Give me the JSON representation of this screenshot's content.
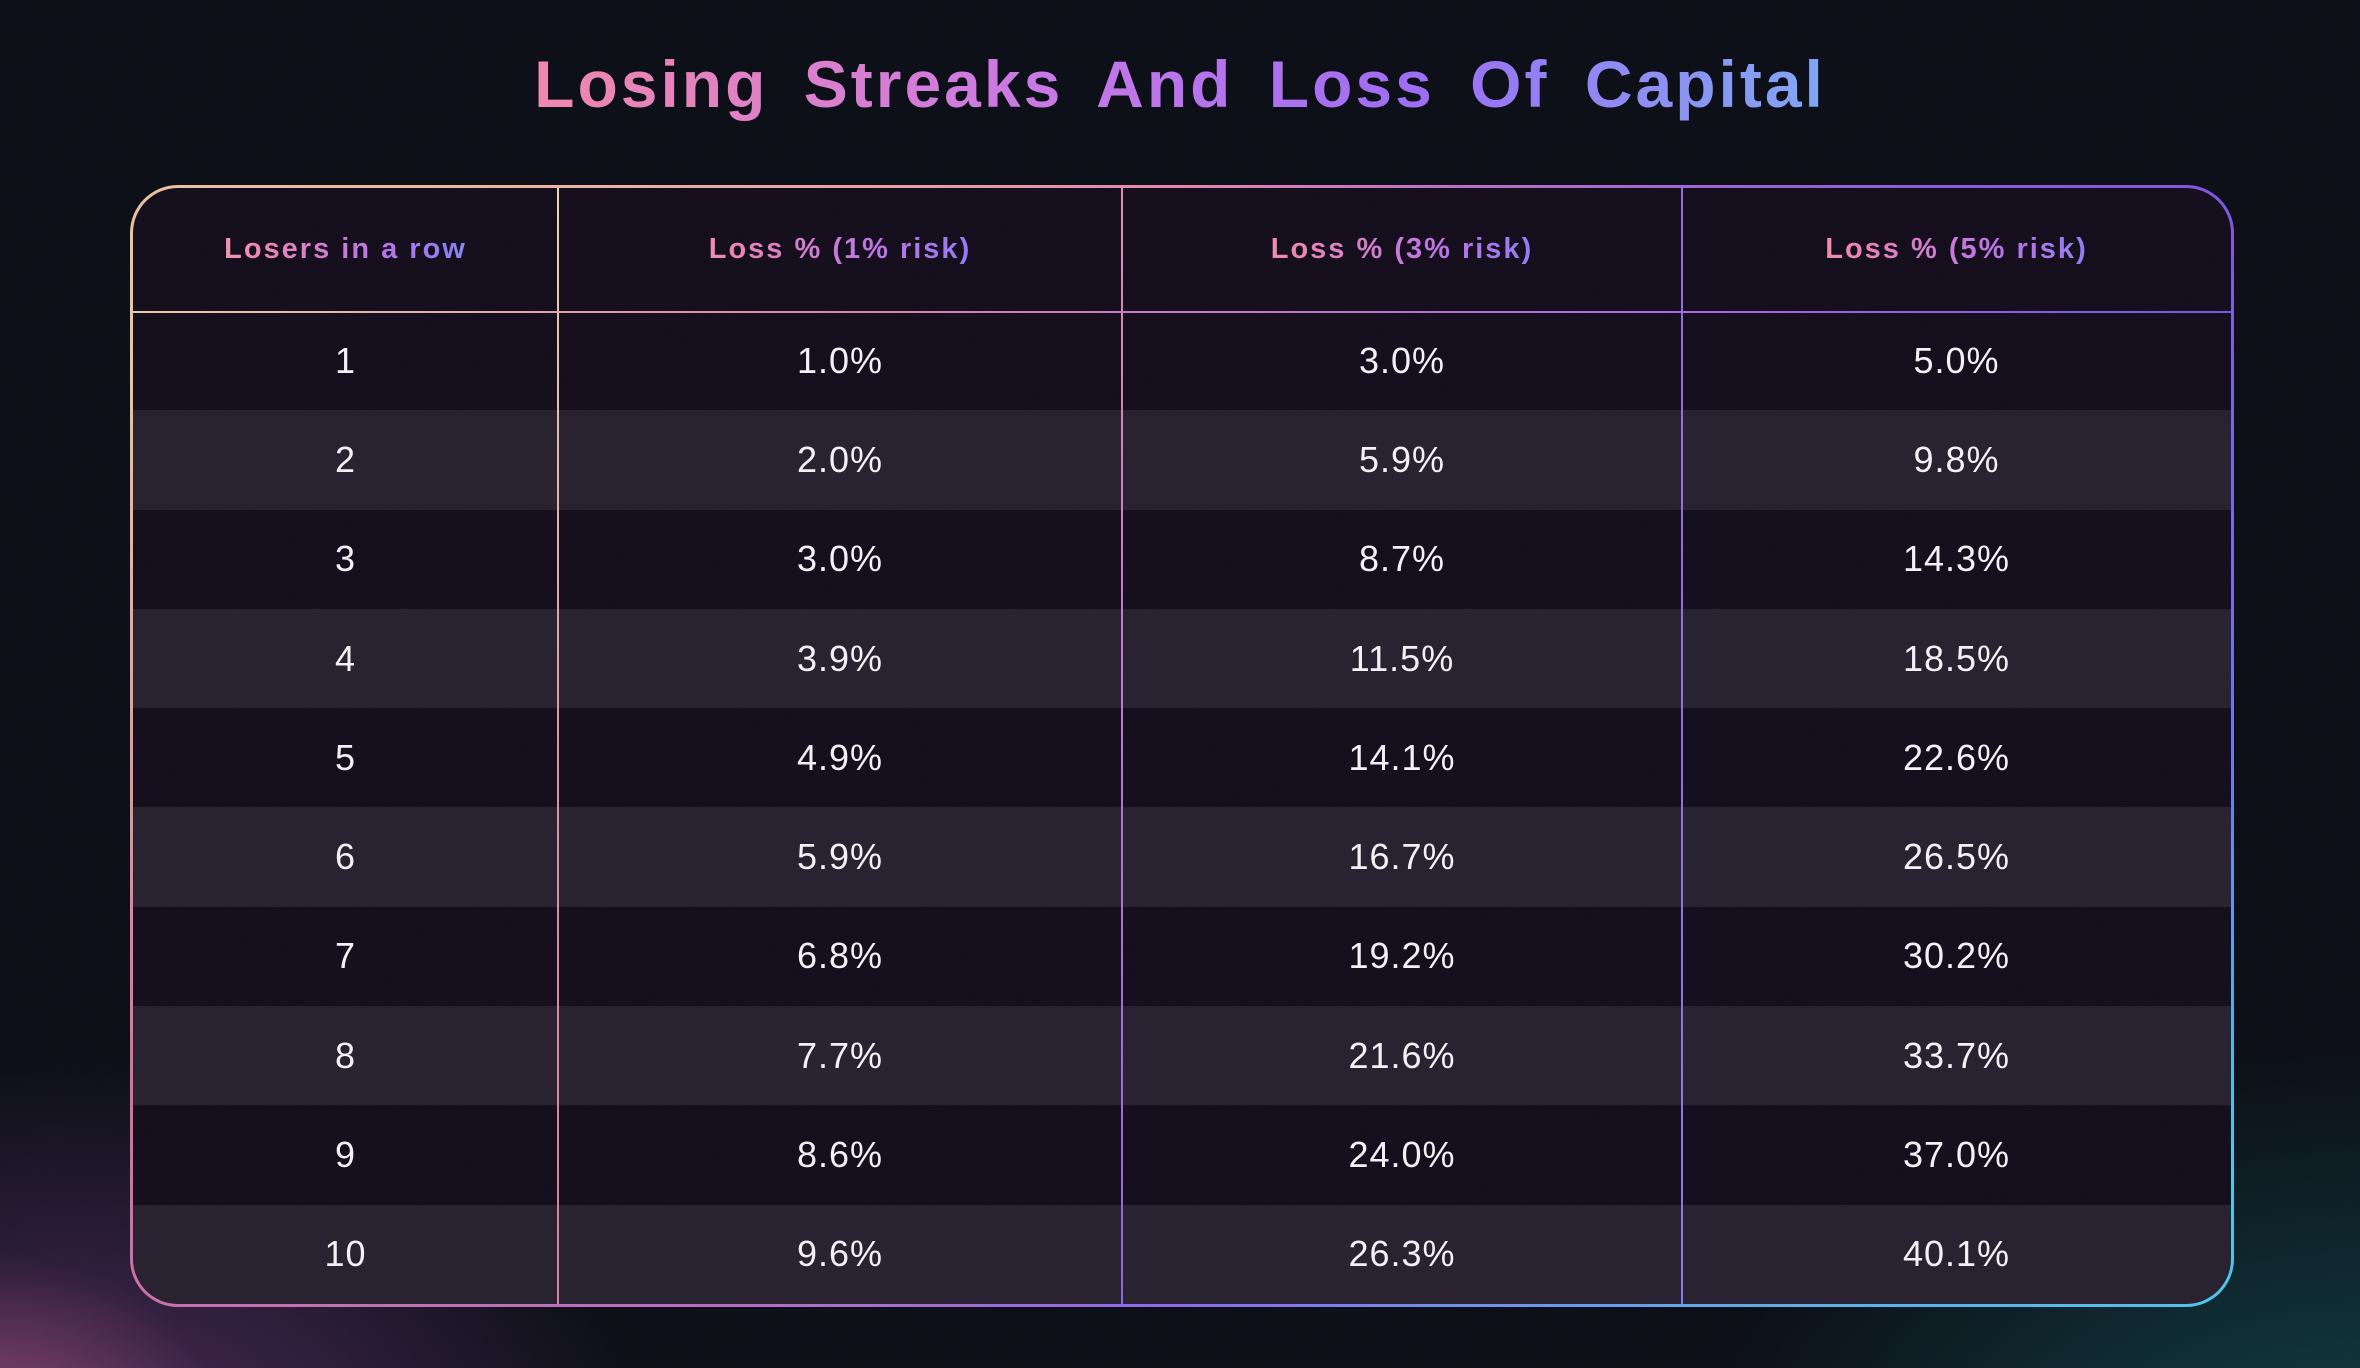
{
  "title": "Losing Streaks And Loss Of Capital",
  "table": {
    "columns": [
      "Losers in a row",
      "Loss % (1% risk)",
      "Loss % (3% risk)",
      "Loss % (5% risk)"
    ],
    "rows": [
      [
        "1",
        "1.0%",
        "3.0%",
        "5.0%"
      ],
      [
        "2",
        "2.0%",
        "5.9%",
        "9.8%"
      ],
      [
        "3",
        "3.0%",
        "8.7%",
        "14.3%"
      ],
      [
        "4",
        "3.9%",
        "11.5%",
        "18.5%"
      ],
      [
        "5",
        "4.9%",
        "14.1%",
        "22.6%"
      ],
      [
        "6",
        "5.9%",
        "16.7%",
        "26.5%"
      ],
      [
        "7",
        "6.8%",
        "19.2%",
        "30.2%"
      ],
      [
        "8",
        "7.7%",
        "21.6%",
        "33.7%"
      ],
      [
        "9",
        "8.6%",
        "24.0%",
        "37.0%"
      ],
      [
        "10",
        "9.6%",
        "26.3%",
        "40.1%"
      ]
    ]
  },
  "chart_data": {
    "type": "table",
    "title": "Losing Streaks And Loss Of Capital",
    "columns": [
      "Losers in a row",
      "Loss % (1% risk)",
      "Loss % (3% risk)",
      "Loss % (5% risk)"
    ],
    "rows": [
      [
        1,
        "1.0%",
        "3.0%",
        "5.0%"
      ],
      [
        2,
        "2.0%",
        "5.9%",
        "9.8%"
      ],
      [
        3,
        "3.0%",
        "8.7%",
        "14.3%"
      ],
      [
        4,
        "3.9%",
        "11.5%",
        "18.5%"
      ],
      [
        5,
        "4.9%",
        "14.1%",
        "22.6%"
      ],
      [
        6,
        "5.9%",
        "16.7%",
        "26.5%"
      ],
      [
        7,
        "6.8%",
        "19.2%",
        "30.2%"
      ],
      [
        8,
        "7.7%",
        "21.6%",
        "33.7%"
      ],
      [
        9,
        "8.6%",
        "24.0%",
        "37.0%"
      ],
      [
        10,
        "9.6%",
        "26.3%",
        "40.1%"
      ]
    ]
  },
  "colors": {
    "background": "#0a0d15",
    "row_dark": "#130c1b",
    "row_light": "#2a2430",
    "body_text": "#f4f2f6",
    "gradient_peach": "#f3c498",
    "gradient_pink": "#ee86b0",
    "gradient_purple": "#9d6cf4",
    "gradient_cyan": "#4ed2f0",
    "glow_bottom_left": "#8e46a0",
    "glow_bottom_right": "#168084"
  }
}
